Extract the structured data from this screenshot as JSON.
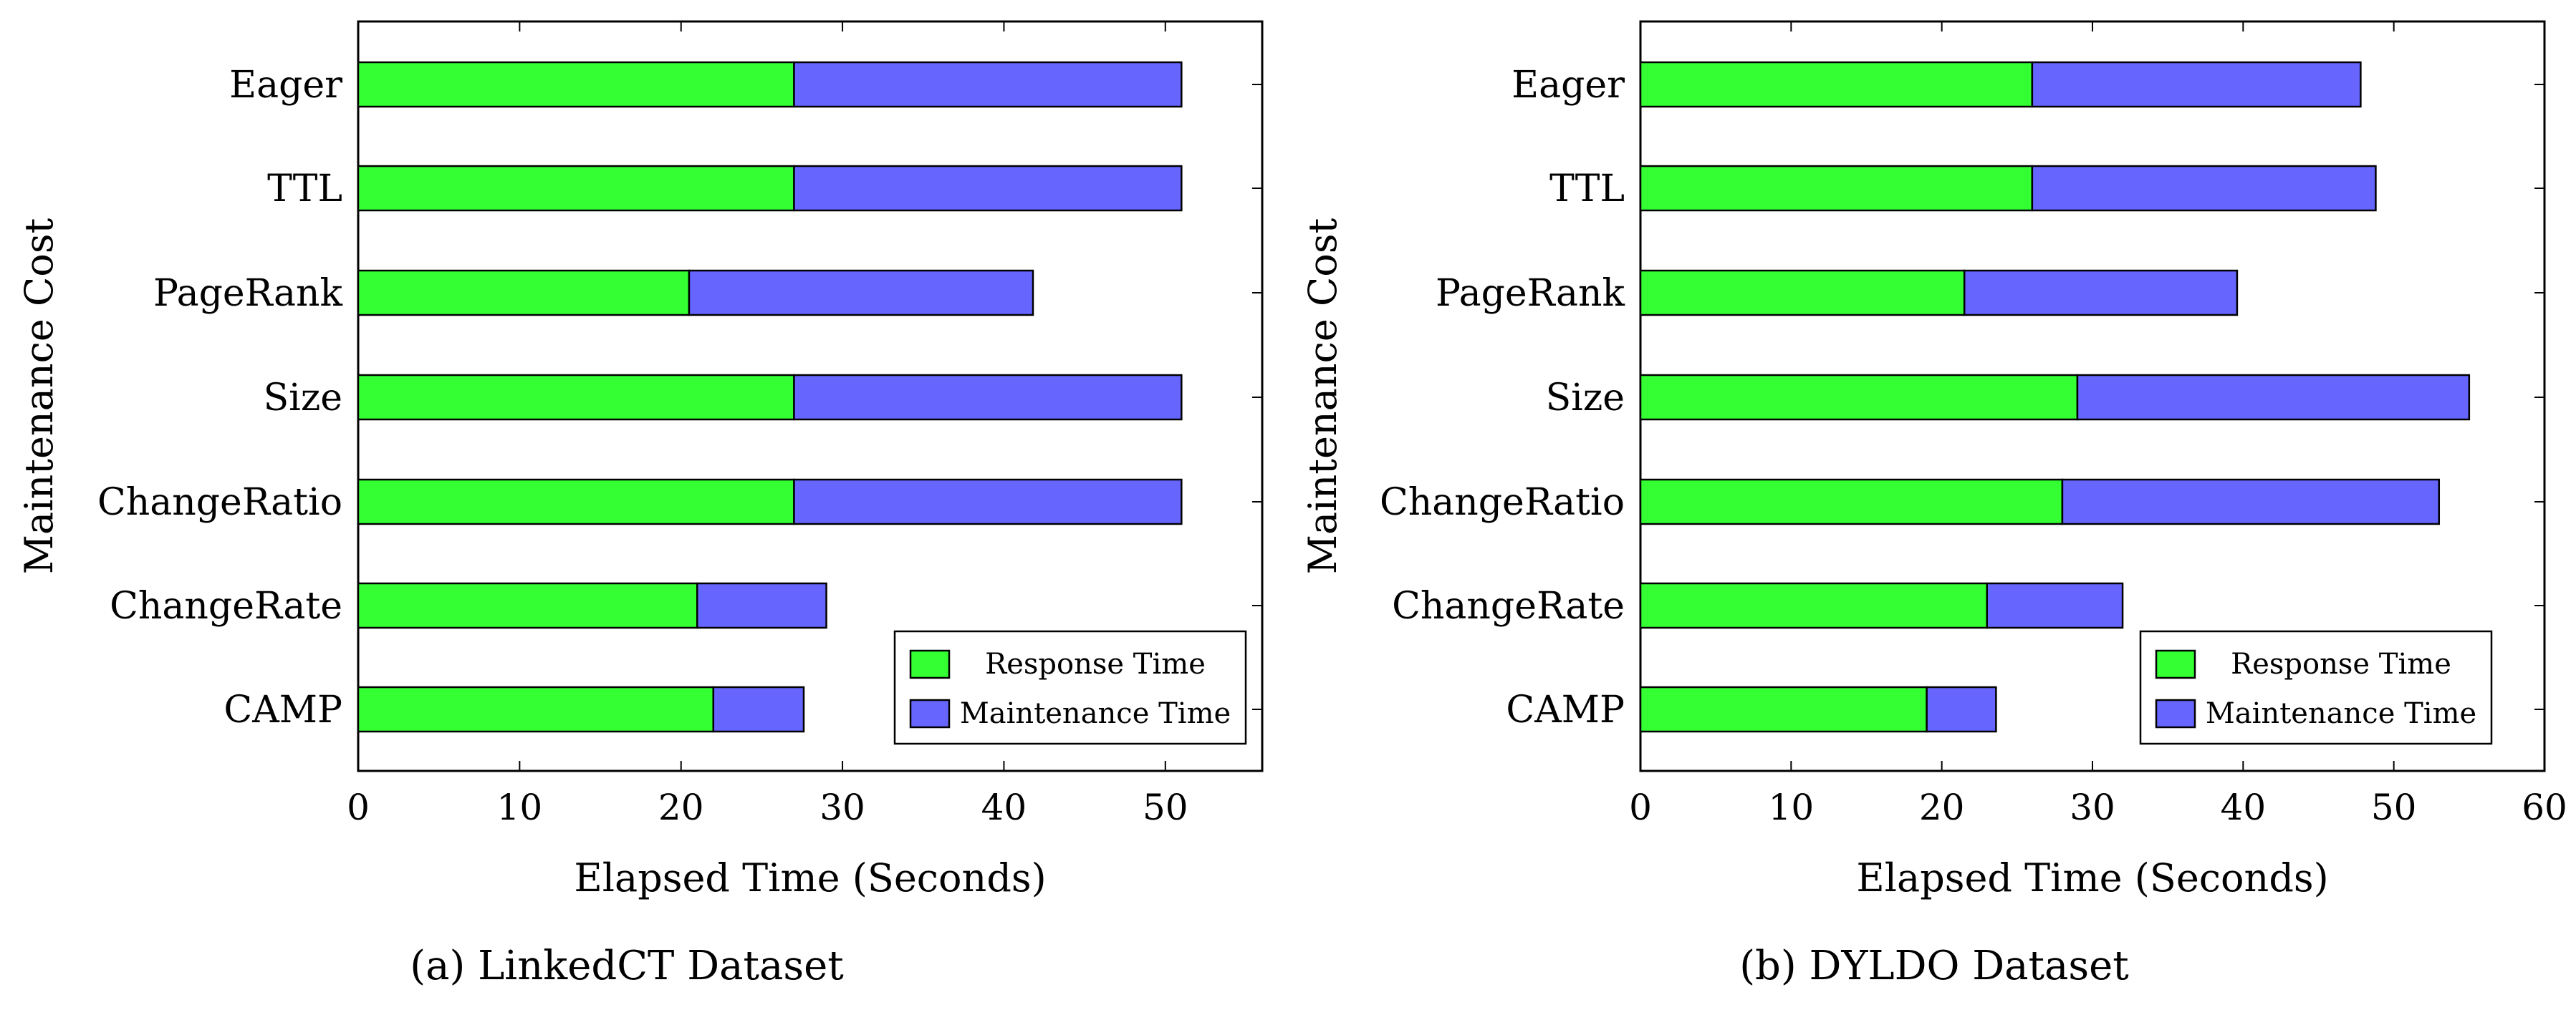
{
  "chart_data": [
    {
      "type": "bar",
      "orientation": "horizontal",
      "stacked": true,
      "caption": "(a)  LinkedCT Dataset",
      "xlabel": "Elapsed Time (Seconds)",
      "ylabel": "Maintenance Cost",
      "xlim": [
        0,
        56
      ],
      "xticks": [
        0,
        10,
        20,
        30,
        40,
        50
      ],
      "categories": [
        "Eager",
        "TTL",
        "PageRank",
        "Size",
        "ChangeRatio",
        "ChangeRate",
        "CAMP"
      ],
      "series": [
        {
          "name": "Response Time",
          "color": "#33ff33",
          "values": [
            27,
            27,
            20.5,
            27,
            27,
            21,
            22
          ]
        },
        {
          "name": "Maintenance Time",
          "color": "#6666ff",
          "values": [
            24,
            24,
            21.3,
            24,
            24,
            8,
            5.6
          ]
        }
      ],
      "legend_position": "bottom-right"
    },
    {
      "type": "bar",
      "orientation": "horizontal",
      "stacked": true,
      "caption": "(b)  DYLDO Dataset",
      "xlabel": "Elapsed Time (Seconds)",
      "ylabel": "Maintenance Cost",
      "xlim": [
        0,
        60
      ],
      "xticks": [
        0,
        10,
        20,
        30,
        40,
        50,
        60
      ],
      "categories": [
        "Eager",
        "TTL",
        "PageRank",
        "Size",
        "ChangeRatio",
        "ChangeRate",
        "CAMP"
      ],
      "series": [
        {
          "name": "Response Time",
          "color": "#33ff33",
          "values": [
            26,
            26,
            21.5,
            29,
            28,
            23,
            19
          ]
        },
        {
          "name": "Maintenance Time",
          "color": "#6666ff",
          "values": [
            21.8,
            22.8,
            18.1,
            26,
            25,
            9,
            4.6
          ]
        }
      ],
      "legend_position": "bottom-right"
    }
  ]
}
